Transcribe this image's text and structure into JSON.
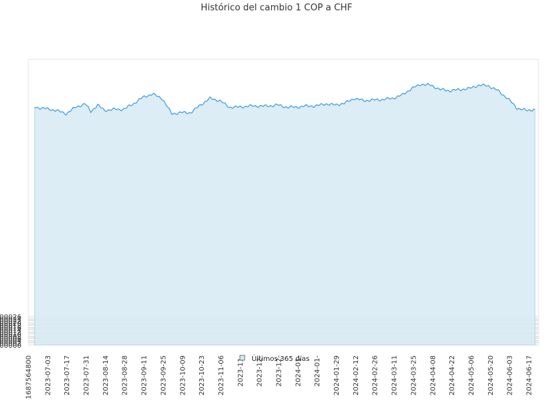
{
  "chart_data": {
    "type": "area",
    "title": "Histórico del cambio 1 COP a CHF",
    "xlabel": "",
    "ylabel": "",
    "ylim": [
      0,
      0.00026
    ],
    "y_ticks": [
      "0.000000",
      "0.000002",
      "0.000004",
      "0.000006",
      "0.000008",
      "0.000010",
      "0.000012",
      "0.000014",
      "0.000016",
      "0.000018",
      "0.000020",
      "0.000022",
      "0.000024",
      "0.000026"
    ],
    "x_tick_labels": [
      "1687564800",
      "2023-07-03",
      "2023-07-17",
      "2023-07-31",
      "2023-08-14",
      "2023-08-28",
      "2023-09-11",
      "2023-09-25",
      "2023-10-09",
      "2023-10-23",
      "2023-11-06",
      "2023-11-",
      "2023-12-",
      "2023-12-",
      "2024-01-",
      "2024-01-",
      "2024-01-29",
      "2024-02-12",
      "2024-02-26",
      "2024-03-11",
      "2024-03-25",
      "2024-04-08",
      "2024-04-22",
      "2024-05-06",
      "2024-05-20",
      "2024-06-03",
      "2024-06-17"
    ],
    "grid": true,
    "legend_position": "bottom-center",
    "series": [
      {
        "name": "Últimos 365 días",
        "color": "#4a9fe0",
        "fill": "#d6eaf3",
        "x": [
          "2023-06-24",
          "2023-07-03",
          "2023-07-10",
          "2023-07-17",
          "2023-07-24",
          "2023-07-31",
          "2023-08-04",
          "2023-08-09",
          "2023-08-14",
          "2023-08-21",
          "2023-08-28",
          "2023-09-04",
          "2023-09-11",
          "2023-09-18",
          "2023-09-25",
          "2023-10-02",
          "2023-10-09",
          "2023-10-16",
          "2023-10-23",
          "2023-10-30",
          "2023-11-06",
          "2023-11-13",
          "2023-11-20",
          "2023-11-27",
          "2023-12-04",
          "2023-12-11",
          "2023-12-18",
          "2023-12-25",
          "2024-01-01",
          "2024-01-08",
          "2024-01-15",
          "2024-01-22",
          "2024-01-29",
          "2024-02-05",
          "2024-02-12",
          "2024-02-19",
          "2024-02-26",
          "2024-03-04",
          "2024-03-11",
          "2024-03-18",
          "2024-03-25",
          "2024-04-01",
          "2024-04-08",
          "2024-04-15",
          "2024-04-22",
          "2024-04-29",
          "2024-05-06",
          "2024-05-13",
          "2024-05-20",
          "2024-05-27",
          "2024-06-03",
          "2024-06-10",
          "2024-06-17",
          "2024-06-23"
        ],
        "values": [
          0.000217,
          0.0002155,
          0.000214,
          0.000211,
          0.000217,
          0.00022,
          0.000213,
          0.000219,
          0.000214,
          0.000215,
          0.000215,
          0.00022,
          0.000226,
          0.000229,
          0.000225,
          0.000211,
          0.000212,
          0.000212,
          0.000219,
          0.000225,
          0.000223,
          0.000217,
          0.000217,
          0.000218,
          0.000218,
          0.000218,
          0.000219,
          0.000217,
          0.000217,
          0.000218,
          0.000218,
          0.00022,
          0.000219,
          0.0002205,
          0.000225,
          0.000223,
          0.0002235,
          0.000224,
          0.000225,
          0.000228,
          0.000234,
          0.000238,
          0.000237,
          0.000233,
          0.000232,
          0.000233,
          0.000234,
          0.000237,
          0.0002365,
          0.000232,
          0.000225,
          0.000216,
          0.000214,
          0.000215
        ]
      }
    ]
  }
}
